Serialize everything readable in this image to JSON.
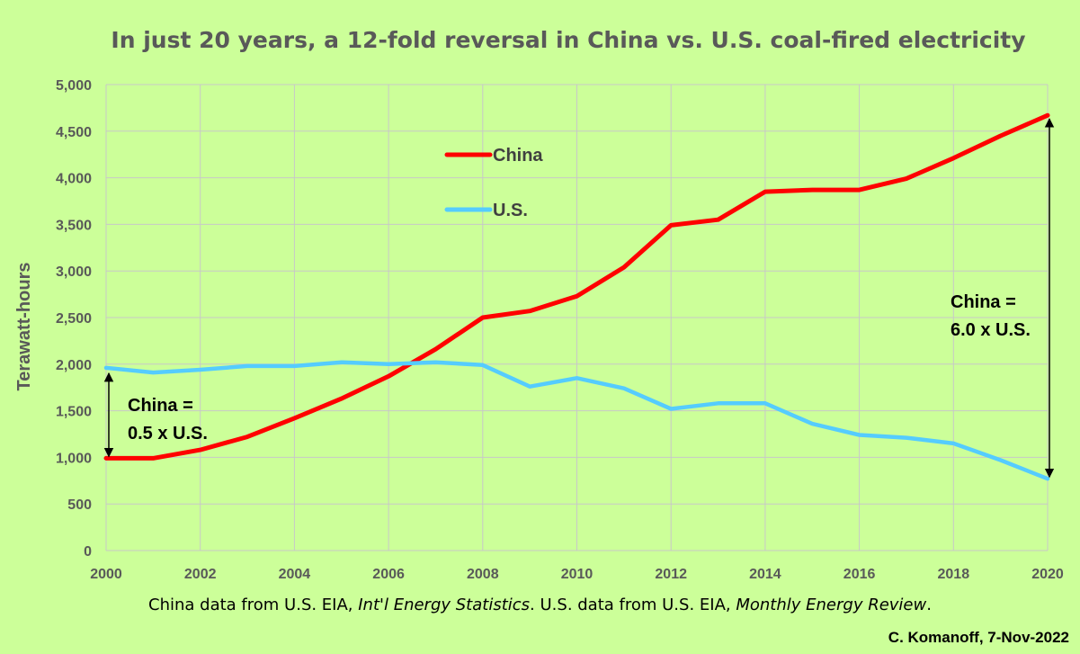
{
  "chart_data": {
    "type": "line",
    "title": "In just 20 years, a 12-fold reversal in China vs. U.S. coal-fired electricity",
    "xlabel": "",
    "ylabel": "Terawatt-hours",
    "x": [
      2000,
      2001,
      2002,
      2003,
      2004,
      2005,
      2006,
      2007,
      2008,
      2009,
      2010,
      2011,
      2012,
      2013,
      2014,
      2015,
      2016,
      2017,
      2018,
      2019,
      2020
    ],
    "xticks": [
      "2000",
      "2002",
      "2004",
      "2006",
      "2008",
      "2010",
      "2012",
      "2014",
      "2016",
      "2018",
      "2020"
    ],
    "yticks": [
      "0",
      "500",
      "1,000",
      "1,500",
      "2,000",
      "2,500",
      "3,000",
      "3,500",
      "4,000",
      "4,500",
      "5,000"
    ],
    "xlim": [
      2000,
      2020
    ],
    "ylim": [
      0,
      5000
    ],
    "grid": true,
    "legend_position": "top-center",
    "series": [
      {
        "name": "China",
        "color": "#ff0000",
        "values": [
          990,
          990,
          1080,
          1220,
          1420,
          1630,
          1870,
          2160,
          2500,
          2570,
          2730,
          3040,
          3490,
          3550,
          3850,
          3870,
          3870,
          3990,
          4210,
          4450,
          4670
        ]
      },
      {
        "name": "U.S.",
        "color": "#55ccff",
        "values": [
          1960,
          1910,
          1940,
          1980,
          1980,
          2020,
          2000,
          2020,
          1990,
          1760,
          1850,
          1740,
          1520,
          1580,
          1580,
          1360,
          1240,
          1210,
          1150,
          970,
          770
        ]
      }
    ],
    "annotations": [
      {
        "lines": [
          "China =",
          "0.5 x U.S."
        ],
        "year": 2000
      },
      {
        "lines": [
          "China =",
          "6.0 x U.S."
        ],
        "year": 2020
      }
    ]
  },
  "footer": {
    "source_parts": [
      "China data from U.S. EIA, ",
      "Int'l Energy Statistics",
      ". U.S. data from U.S. EIA, ",
      "Monthly Energy Review",
      "."
    ],
    "credit": "C. Komanoff, 7-Nov-2022"
  }
}
